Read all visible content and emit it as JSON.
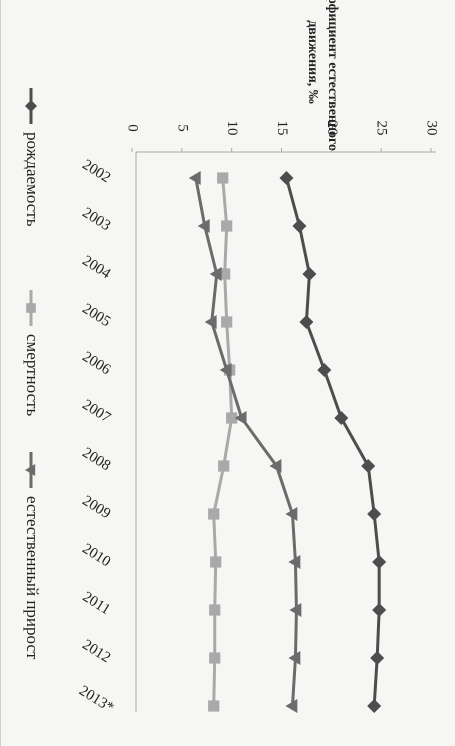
{
  "chart_data": {
    "type": "line",
    "title_line1": "коэффициент естественного",
    "title_line2": "движения, ‰",
    "categories": [
      "2002",
      "2003",
      "2004",
      "2005",
      "2006",
      "2007",
      "2008",
      "2009",
      "2010",
      "2011",
      "2012",
      "2013*"
    ],
    "value_axis": {
      "min": 0,
      "max": 30,
      "step": 5,
      "ticks": [
        "0",
        "5",
        "10",
        "15",
        "20",
        "25",
        "30"
      ]
    },
    "series": [
      {
        "name": "рождаемость",
        "color": "#4d4d4d",
        "marker": "diamond",
        "values": [
          15.5,
          16.8,
          17.8,
          17.5,
          19.3,
          21.0,
          23.7,
          24.3,
          24.8,
          24.8,
          24.6,
          24.3
        ]
      },
      {
        "name": "смертность",
        "color": "#a9a9a9",
        "marker": "square",
        "values": [
          9.1,
          9.5,
          9.3,
          9.5,
          9.8,
          10.0,
          9.2,
          8.2,
          8.4,
          8.3,
          8.3,
          8.2
        ]
      },
      {
        "name": "естественный прирост",
        "color": "#6b6b6b",
        "marker": "triangle",
        "values": [
          6.4,
          7.3,
          8.5,
          8.0,
          9.5,
          11.0,
          14.5,
          16.1,
          16.4,
          16.5,
          16.4,
          16.1
        ]
      }
    ],
    "legend_position": "left",
    "grid": false
  }
}
